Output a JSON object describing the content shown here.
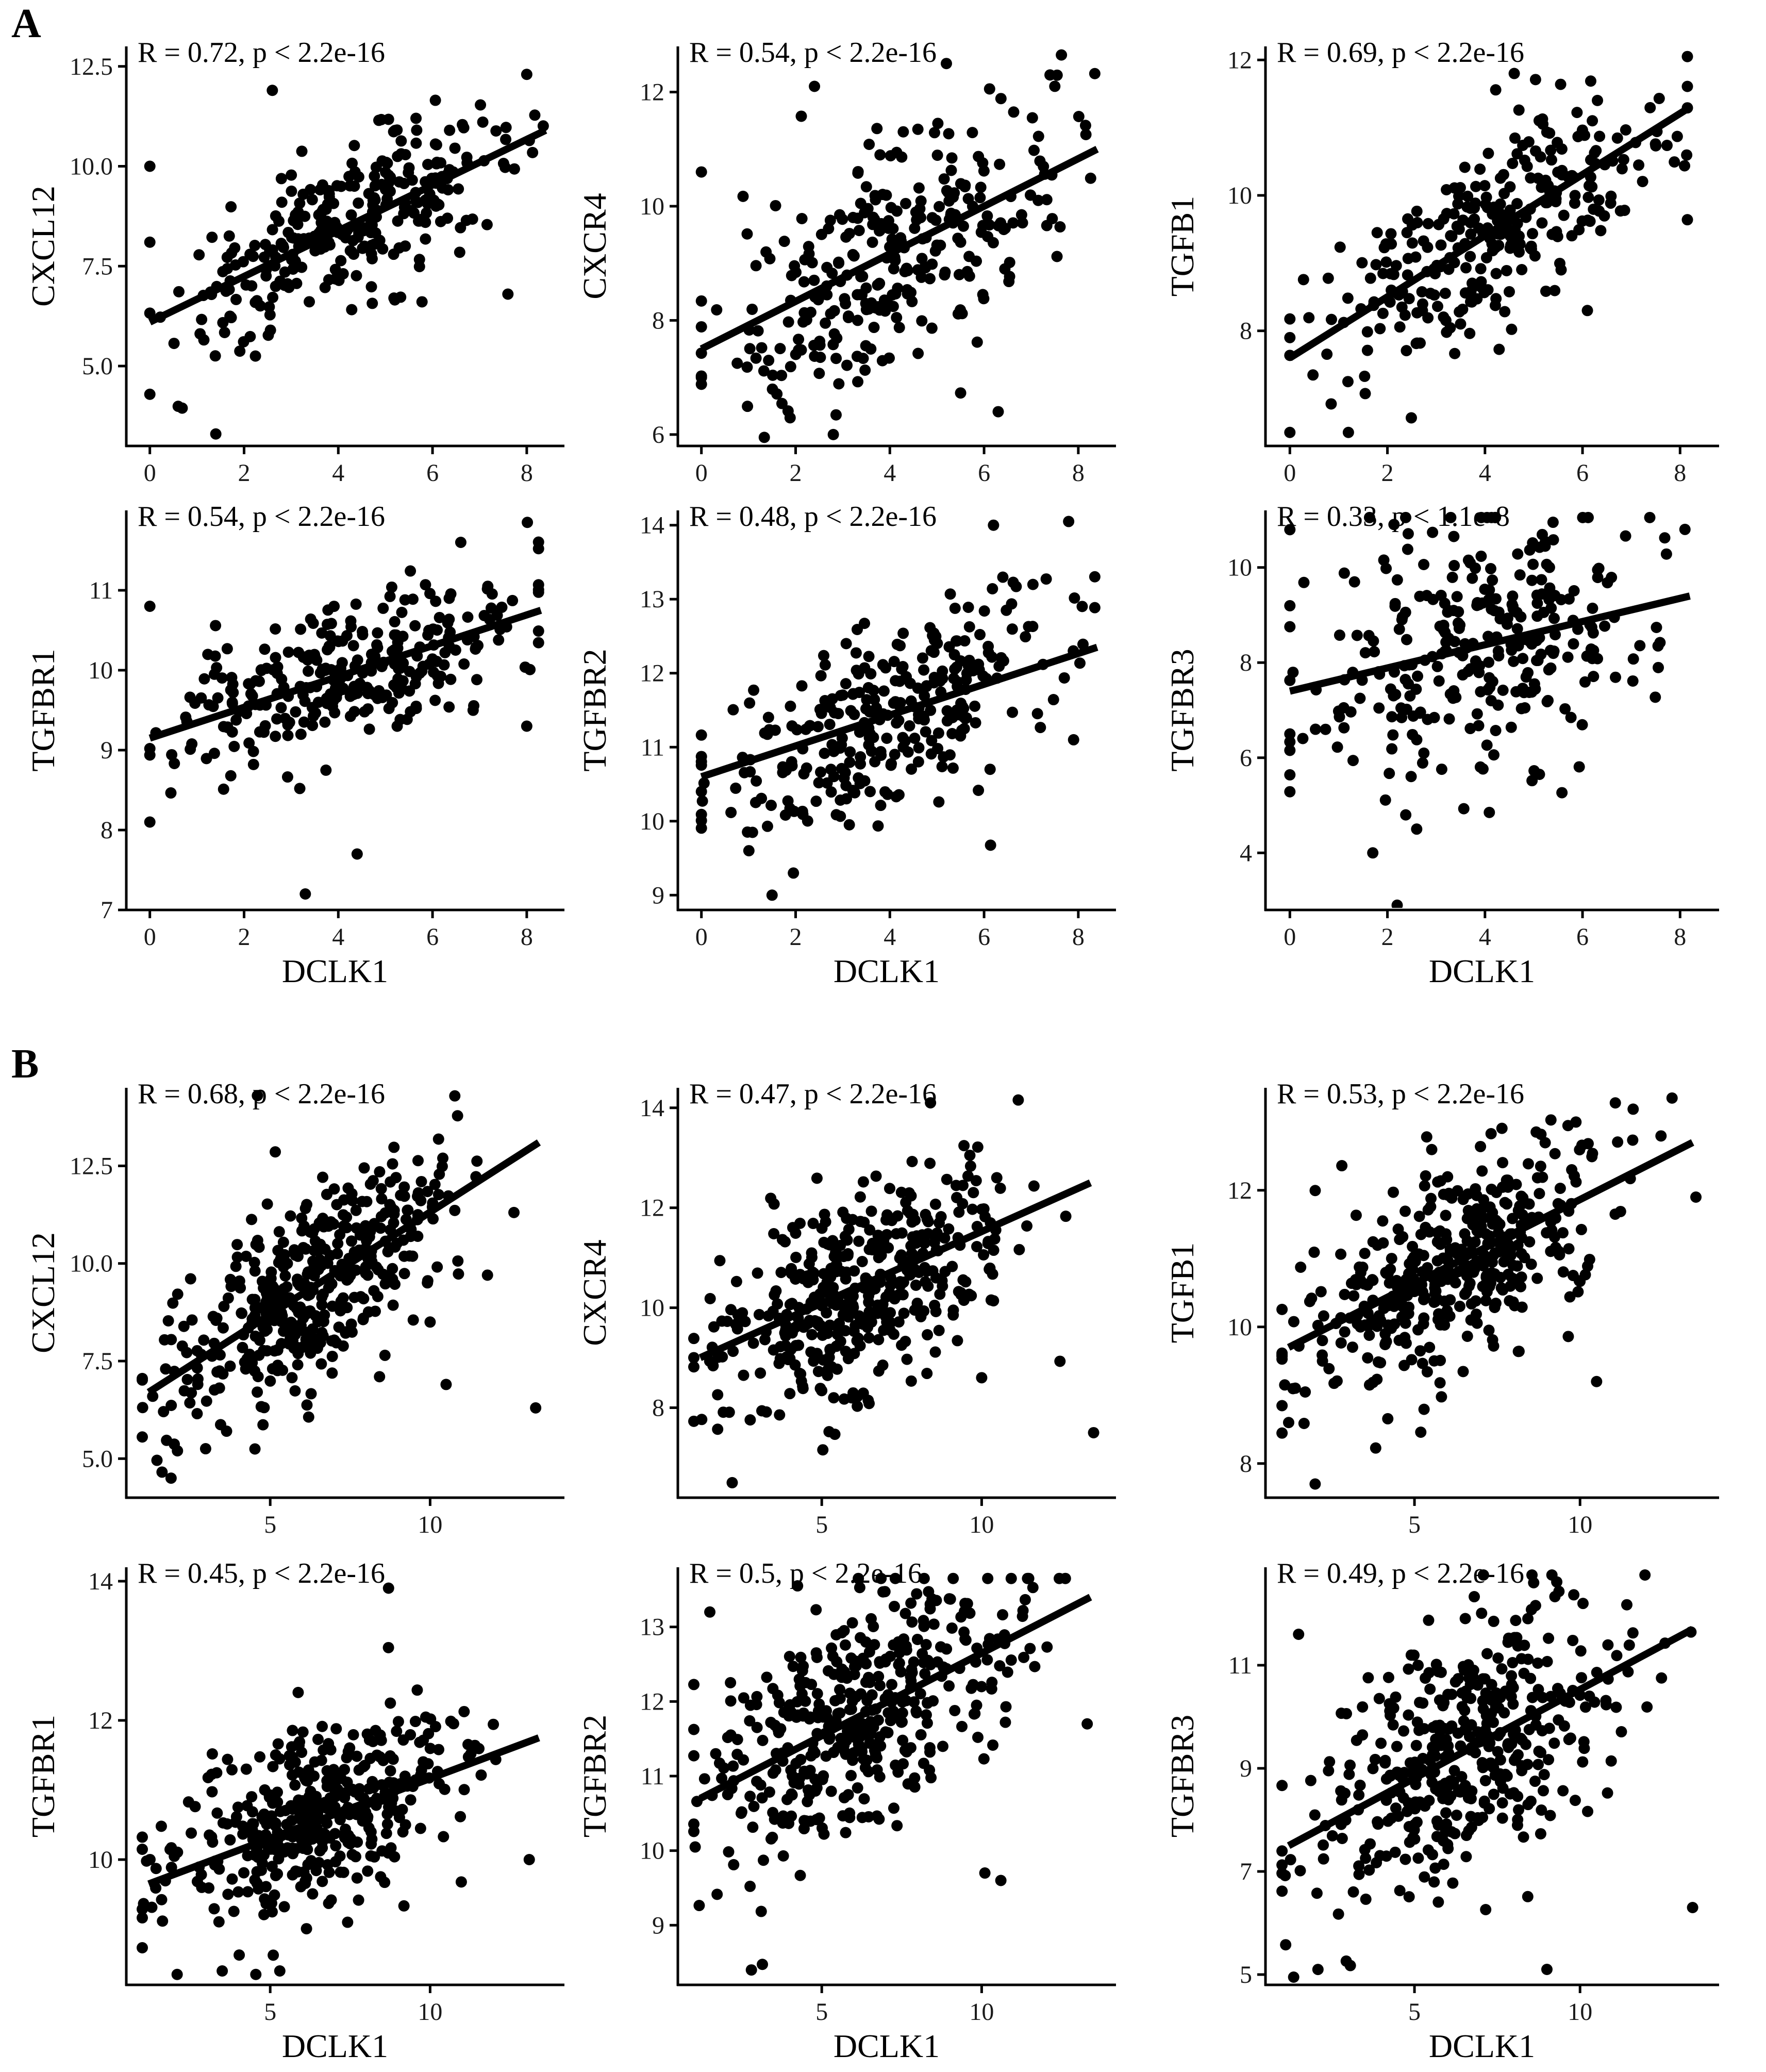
{
  "panel_labels": [
    "A",
    "B"
  ],
  "chart_data": [
    {
      "panel": "A",
      "type": "scatter",
      "title": "",
      "xlabel": "",
      "ylabel": "CXCL12",
      "stat": "R = 0.72, p < 2.2e-16",
      "xlim": [
        -0.5,
        8.8
      ],
      "ylim": [
        3,
        13
      ],
      "xticks": [
        0,
        2,
        4,
        6,
        8
      ],
      "yticks": [
        5.0,
        7.5,
        10.0,
        12.5
      ],
      "xtick_labels": [
        "0",
        "2",
        "4",
        "6",
        "8"
      ],
      "ytick_labels": [
        "5.0",
        "7.5",
        "10.0",
        "12.5"
      ],
      "n_points": 300,
      "r": 0.72,
      "regression": {
        "x": [
          0,
          8.4
        ],
        "y": [
          6.1,
          10.9
        ]
      },
      "x_mean": 4.2,
      "x_sd": 1.8,
      "y_sd": 1.28,
      "outliers": [
        [
          1.4,
          3.3
        ],
        [
          0,
          10.0
        ],
        [
          0,
          8.1
        ],
        [
          2.6,
          11.9
        ],
        [
          7.6,
          6.8
        ],
        [
          8.0,
          12.3
        ]
      ]
    },
    {
      "panel": "A",
      "type": "scatter",
      "title": "",
      "xlabel": "",
      "ylabel": "CXCR4",
      "stat": "R = 0.54, p < 2.2e-16",
      "xlim": [
        -0.5,
        8.8
      ],
      "ylim": [
        5.8,
        12.8
      ],
      "xticks": [
        0,
        2,
        4,
        6,
        8
      ],
      "yticks": [
        6,
        8,
        10,
        12
      ],
      "xtick_labels": [
        "0",
        "2",
        "4",
        "6",
        "8"
      ],
      "ytick_labels": [
        "6",
        "8",
        "10",
        "12"
      ],
      "n_points": 300,
      "r": 0.54,
      "regression": {
        "x": [
          0,
          8.4
        ],
        "y": [
          7.5,
          11.0
        ]
      },
      "x_mean": 4.0,
      "x_sd": 1.8,
      "y_sd": 1.2,
      "outliers": [
        [
          0,
          10.6
        ],
        [
          2.8,
          6.0
        ],
        [
          6.3,
          6.4
        ],
        [
          2.4,
          12.1
        ],
        [
          7.4,
          12.3
        ],
        [
          5.2,
          12.5
        ]
      ]
    },
    {
      "panel": "A",
      "type": "scatter",
      "title": "",
      "xlabel": "",
      "ylabel": "TGFB1",
      "stat": "R = 0.69, p < 2.2e-16",
      "xlim": [
        -0.5,
        8.8
      ],
      "ylim": [
        6.3,
        12.2
      ],
      "xticks": [
        0,
        2,
        4,
        6,
        8
      ],
      "yticks": [
        8,
        10,
        12
      ],
      "xtick_labels": [
        "0",
        "2",
        "4",
        "6",
        "8"
      ],
      "ytick_labels": [
        "8",
        "10",
        "12"
      ],
      "n_points": 300,
      "r": 0.69,
      "regression": {
        "x": [
          0,
          8.2
        ],
        "y": [
          7.6,
          11.3
        ]
      },
      "x_mean": 4.3,
      "x_sd": 1.8,
      "y_sd": 0.95,
      "outliers": [
        [
          0,
          6.5
        ],
        [
          0,
          7.9
        ],
        [
          6.1,
          8.3
        ],
        [
          4.6,
          11.8
        ],
        [
          1.2,
          6.5
        ]
      ]
    },
    {
      "panel": "A",
      "type": "scatter",
      "title": "",
      "xlabel": "DCLK1",
      "ylabel": "TGFBR1",
      "stat": "R = 0.54, p < 2.2e-16",
      "xlim": [
        -0.5,
        8.8
      ],
      "ylim": [
        7.0,
        12.0
      ],
      "xticks": [
        0,
        2,
        4,
        6,
        8
      ],
      "yticks": [
        7,
        8,
        9,
        10,
        11
      ],
      "xtick_labels": [
        "0",
        "2",
        "4",
        "6",
        "8"
      ],
      "ytick_labels": [
        "7",
        "8",
        "9",
        "10",
        "11"
      ],
      "n_points": 300,
      "r": 0.54,
      "regression": {
        "x": [
          0,
          8.3
        ],
        "y": [
          9.15,
          10.75
        ]
      },
      "x_mean": 4.2,
      "x_sd": 1.8,
      "y_sd": 0.55,
      "outliers": [
        [
          0,
          8.1
        ],
        [
          3.3,
          7.2
        ],
        [
          4.4,
          7.7
        ],
        [
          0,
          10.8
        ],
        [
          6.6,
          11.6
        ],
        [
          8.0,
          9.3
        ]
      ]
    },
    {
      "panel": "A",
      "type": "scatter",
      "title": "",
      "xlabel": "DCLK1",
      "ylabel": "TGFBR2",
      "stat": "R = 0.48, p < 2.2e-16",
      "xlim": [
        -0.5,
        8.8
      ],
      "ylim": [
        8.8,
        14.2
      ],
      "xticks": [
        0,
        2,
        4,
        6,
        8
      ],
      "yticks": [
        9,
        10,
        11,
        12,
        13,
        14
      ],
      "xtick_labels": [
        "0",
        "2",
        "4",
        "6",
        "8"
      ],
      "ytick_labels": [
        "9",
        "10",
        "11",
        "12",
        "13",
        "14"
      ],
      "n_points": 300,
      "r": 0.48,
      "regression": {
        "x": [
          0,
          8.4
        ],
        "y": [
          10.6,
          12.35
        ]
      },
      "x_mean": 4.0,
      "x_sd": 1.8,
      "y_sd": 0.75,
      "outliers": [
        [
          1.5,
          9.0
        ],
        [
          6.2,
          14.0
        ],
        [
          0,
          10.4
        ],
        [
          7.9,
          11.1
        ]
      ]
    },
    {
      "panel": "A",
      "type": "scatter",
      "title": "",
      "xlabel": "DCLK1",
      "ylabel": "TGFBR3",
      "stat": "R = 0.33, p < 1.1e-8",
      "xlim": [
        -0.5,
        8.8
      ],
      "ylim": [
        2.8,
        11.2
      ],
      "xticks": [
        0,
        2,
        4,
        6,
        8
      ],
      "yticks": [
        4,
        6,
        8,
        10
      ],
      "xtick_labels": [
        "0",
        "2",
        "4",
        "6",
        "8"
      ],
      "ytick_labels": [
        "4",
        "6",
        "8",
        "10"
      ],
      "n_points": 300,
      "r": 0.33,
      "regression": {
        "x": [
          0,
          8.2
        ],
        "y": [
          7.4,
          9.4
        ]
      },
      "x_mean": 4.0,
      "x_sd": 1.8,
      "y_sd": 1.4,
      "outliers": [
        [
          2.2,
          2.9
        ],
        [
          1.7,
          4.0
        ],
        [
          2.6,
          4.5
        ],
        [
          0,
          6.5
        ],
        [
          8.1,
          10.8
        ]
      ]
    },
    {
      "panel": "B",
      "type": "scatter",
      "title": "",
      "xlabel": "",
      "ylabel": "CXCL12",
      "stat": "R = 0.68, p < 2.2e-16",
      "xlim": [
        0.5,
        14.2
      ],
      "ylim": [
        4.0,
        14.5
      ],
      "xticks": [
        5,
        10
      ],
      "yticks": [
        5.0,
        7.5,
        10.0,
        12.5
      ],
      "xtick_labels": [
        "5",
        "10"
      ],
      "ytick_labels": [
        "5.0",
        "7.5",
        "10.0",
        "12.5"
      ],
      "n_points": 420,
      "r": 0.68,
      "regression": {
        "x": [
          1.2,
          13.4
        ],
        "y": [
          6.7,
          13.1
        ]
      },
      "x_mean": 6.2,
      "x_sd": 2.3,
      "y_sd": 1.6,
      "outliers": [
        [
          1.9,
          4.5
        ],
        [
          2.1,
          5.2
        ],
        [
          13.3,
          6.3
        ],
        [
          10.5,
          6.9
        ],
        [
          10.0,
          8.5
        ],
        [
          4.6,
          14.3
        ]
      ]
    },
    {
      "panel": "B",
      "type": "scatter",
      "title": "",
      "xlabel": "",
      "ylabel": "CXCR4",
      "stat": "R = 0.47, p < 2.2e-16",
      "xlim": [
        0.5,
        14.2
      ],
      "ylim": [
        6.2,
        14.4
      ],
      "xticks": [
        5,
        10
      ],
      "yticks": [
        8,
        10,
        12,
        14
      ],
      "xtick_labels": [
        "5",
        "10"
      ],
      "ytick_labels": [
        "8",
        "10",
        "12",
        "14"
      ],
      "n_points": 420,
      "r": 0.47,
      "regression": {
        "x": [
          1.2,
          13.4
        ],
        "y": [
          9.0,
          12.5
        ]
      },
      "x_mean": 6.2,
      "x_sd": 2.3,
      "y_sd": 1.2,
      "outliers": [
        [
          2.2,
          6.5
        ],
        [
          13.5,
          7.5
        ],
        [
          10.0,
          8.6
        ],
        [
          8.4,
          14.1
        ]
      ]
    },
    {
      "panel": "B",
      "type": "scatter",
      "title": "",
      "xlabel": "",
      "ylabel": "TGFB1",
      "stat": "R = 0.53, p < 2.2e-16",
      "xlim": [
        0.5,
        14.2
      ],
      "ylim": [
        7.5,
        13.5
      ],
      "xticks": [
        5,
        10
      ],
      "yticks": [
        8,
        10,
        12
      ],
      "xtick_labels": [
        "5",
        "10"
      ],
      "ytick_labels": [
        "8",
        "10",
        "12"
      ],
      "n_points": 420,
      "r": 0.53,
      "regression": {
        "x": [
          1.2,
          13.4
        ],
        "y": [
          9.7,
          12.7
        ]
      },
      "x_mean": 6.2,
      "x_sd": 2.3,
      "y_sd": 0.85,
      "outliers": [
        [
          2.0,
          7.7
        ],
        [
          13.5,
          11.9
        ],
        [
          10.5,
          9.2
        ],
        [
          1.2,
          8.6
        ]
      ]
    },
    {
      "panel": "B",
      "type": "scatter",
      "title": "",
      "xlabel": "DCLK1",
      "ylabel": "TGFBR1",
      "stat": "R = 0.45, p < 2.2e-16",
      "xlim": [
        0.5,
        14.2
      ],
      "ylim": [
        8.2,
        14.2
      ],
      "xticks": [
        5,
        10
      ],
      "yticks": [
        10,
        12,
        14
      ],
      "xtick_labels": [
        "5",
        "10"
      ],
      "ytick_labels": [
        "10",
        "12",
        "14"
      ],
      "n_points": 420,
      "r": 0.45,
      "regression": {
        "x": [
          1.2,
          13.4
        ],
        "y": [
          9.65,
          11.75
        ]
      },
      "x_mean": 6.2,
      "x_sd": 2.3,
      "y_sd": 0.75,
      "outliers": [
        [
          8.7,
          13.9
        ],
        [
          3.5,
          8.4
        ],
        [
          5.3,
          8.4
        ],
        [
          13.1,
          10.0
        ]
      ]
    },
    {
      "panel": "B",
      "type": "scatter",
      "title": "",
      "xlabel": "DCLK1",
      "ylabel": "TGFBR2",
      "stat": "R = 0.5, p < 2.2e-16",
      "xlim": [
        0.5,
        14.2
      ],
      "ylim": [
        8.2,
        13.8
      ],
      "xticks": [
        5,
        10
      ],
      "yticks": [
        9,
        10,
        11,
        12,
        13
      ],
      "xtick_labels": [
        "5",
        "10"
      ],
      "ytick_labels": [
        "9",
        "10",
        "11",
        "12",
        "13"
      ],
      "n_points": 420,
      "r": 0.5,
      "regression": {
        "x": [
          1.2,
          13.4
        ],
        "y": [
          10.7,
          13.4
        ]
      },
      "x_mean": 6.2,
      "x_sd": 2.3,
      "y_sd": 0.85,
      "outliers": [
        [
          2.8,
          8.4
        ],
        [
          13.3,
          11.7
        ],
        [
          10.1,
          9.7
        ],
        [
          10.6,
          9.6
        ],
        [
          1.5,
          13.2
        ]
      ]
    },
    {
      "panel": "B",
      "type": "scatter",
      "title": "",
      "xlabel": "DCLK1",
      "ylabel": "TGFBR3",
      "stat": "R = 0.49, p < 2.2e-16",
      "xlim": [
        0.5,
        14.2
      ],
      "ylim": [
        4.8,
        12.9
      ],
      "xticks": [
        5,
        10
      ],
      "yticks": [
        5,
        7,
        9,
        11
      ],
      "xtick_labels": [
        "5",
        "10"
      ],
      "ytick_labels": [
        "5",
        "7",
        "9",
        "11"
      ],
      "n_points": 420,
      "r": 0.49,
      "regression": {
        "x": [
          1.2,
          13.4
        ],
        "y": [
          7.5,
          11.7
        ]
      },
      "x_mean": 6.2,
      "x_sd": 2.3,
      "y_sd": 1.35,
      "outliers": [
        [
          9.0,
          5.1
        ],
        [
          13.4,
          6.3
        ],
        [
          1.5,
          11.6
        ],
        [
          8.6,
          12.6
        ]
      ]
    }
  ]
}
